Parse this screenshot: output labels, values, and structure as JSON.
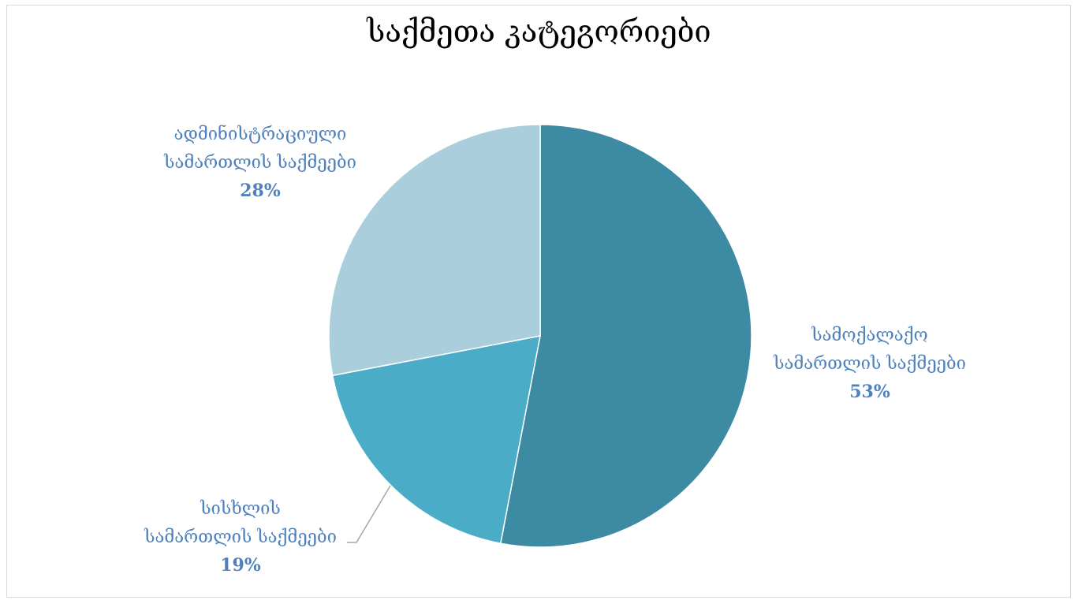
{
  "chart_data": {
    "type": "pie",
    "title": "საქმეთა კატეგორიები",
    "categories": [
      "სამოქალაქო სამართლის საქმეები",
      "სისხლის სამართლის საქმეები",
      "ადმინისტრაციული სამართლის საქმეები"
    ],
    "values": [
      53,
      19,
      28
    ],
    "value_labels": [
      "53%",
      "19%",
      "28%"
    ],
    "label_lines": [
      [
        "სამოქალაქო",
        "სამართლის საქმეები"
      ],
      [
        "სისხლის",
        "სამართლის საქმეები"
      ],
      [
        "ადმინისტრაციული",
        "სამართლის საქმეები"
      ]
    ],
    "colors": [
      "#3d8ba3",
      "#4aacc6",
      "#abcedd"
    ],
    "label_color": "#4f81bd",
    "start_angle": "12 o'clock, clockwise",
    "legend": "none"
  }
}
